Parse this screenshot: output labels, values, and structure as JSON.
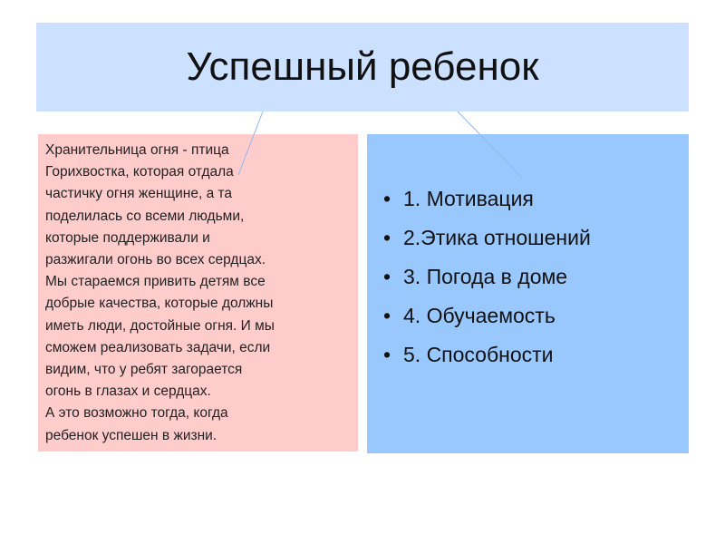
{
  "title": "Успешный ребенок",
  "left_text": [
    "Хранительница  огня - птица",
    "Горихвостка, которая отдала",
    "частичку огня женщине,  а та",
    "поделилась со всеми людьми,",
    "которые поддерживали и",
    "разжигали огонь во всех сердцах.",
    "Мы  стараемся  привить детям все",
    "добрые качества, которые должны",
    "иметь люди, достойные огня. И мы",
    "сможем  реализовать задачи, если",
    "видим, что у ребят загорается",
    "огонь в глазах и сердцах.",
    "А это возможно тогда, когда",
    "ребенок успешен в жизни."
  ],
  "list": [
    "1. Мотивация",
    "2.Этика отношений",
    "3. Погода в доме",
    "4. Обучаемость",
    "5. Способности"
  ],
  "bullet": "•",
  "colors": {
    "title_bg": "#cce0ff",
    "left_bg": "#ffcccc",
    "right_bg": "#99c8ff",
    "connector": "#8fb8ee"
  }
}
